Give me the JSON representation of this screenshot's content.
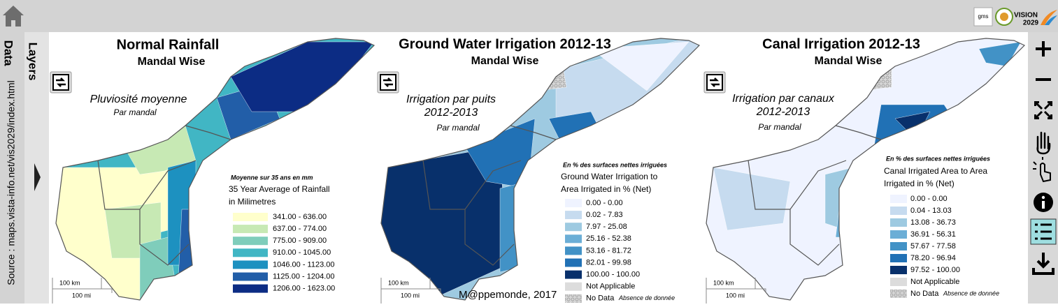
{
  "top_bar": {
    "logo_gms": "gms",
    "logo_vision": [
      "VISION",
      "2029"
    ]
  },
  "sidebar": {
    "data_tab": "Data",
    "source": "Source : maps.vista-info.net/vis2029/index.html",
    "layers_tab": "Layers"
  },
  "panels": [
    {
      "title": "Normal Rainfall",
      "subtitle": "Mandal Wise",
      "title_fr": [
        "Pluviosité moyenne"
      ],
      "subtitle_fr": "Par mandal",
      "legend": {
        "note": "Moyenne sur 35 ans en mm",
        "title": [
          "35 Year Average of Rainfall",
          "in Milimetres"
        ],
        "items": [
          {
            "label": "341.00 - 636.00",
            "color": "#ffffcc"
          },
          {
            "label": "637.00 - 774.00",
            "color": "#c7e9b4"
          },
          {
            "label": "775.00 - 909.00",
            "color": "#7fcdbb"
          },
          {
            "label": "910.00 - 1045.00",
            "color": "#41b6c4"
          },
          {
            "label": "1046.00 - 1123.00",
            "color": "#1d91c0"
          },
          {
            "label": "1125.00 - 1204.00",
            "color": "#225ea8"
          },
          {
            "label": "1206.00 - 1623.00",
            "color": "#0c2c84"
          }
        ]
      },
      "scale": [
        "100 km",
        "100 mi"
      ]
    },
    {
      "title": "Ground Water Irrigation 2012-13",
      "subtitle": "Mandal Wise",
      "title_fr": [
        "Irrigation par puits",
        "2012-2013"
      ],
      "subtitle_fr": "Par mandal",
      "legend": {
        "note": "En % des surfaces nettes irriguées",
        "title": [
          "Ground Water Irrigation to",
          "Area Irrigated in % (Net)"
        ],
        "items": [
          {
            "label": "0.00 - 0.00",
            "color": "#eff3ff"
          },
          {
            "label": "0.02 - 7.83",
            "color": "#c6dbef"
          },
          {
            "label": "7.97 - 25.08",
            "color": "#9ecae1"
          },
          {
            "label": "25.16 - 52.38",
            "color": "#6baed6"
          },
          {
            "label": "53.16 - 81.72",
            "color": "#4292c6"
          },
          {
            "label": "82.01 - 99.98",
            "color": "#2171b5"
          },
          {
            "label": "100.00 - 100.00",
            "color": "#08306b"
          }
        ],
        "not_applicable": {
          "label": "Not Applicable",
          "color": "#dcdcdc"
        },
        "no_data": {
          "label": "No Data",
          "note": "Absence de donnée",
          "color": "#cfcfcf"
        }
      },
      "scale": [
        "100 km",
        "100 mi"
      ]
    },
    {
      "title": "Canal Irrigation 2012-13",
      "subtitle": "Mandal Wise",
      "title_fr": [
        "Irrigation par canaux",
        "2012-2013"
      ],
      "subtitle_fr": "Par mandal",
      "legend": {
        "note": "En % des surfaces nettes irriguées",
        "title": [
          "Canal Irrigated Area to Area",
          "Irrigated in % (Net)"
        ],
        "items": [
          {
            "label": "0.00 - 0.00",
            "color": "#eff3ff"
          },
          {
            "label": "0.04 - 13.03",
            "color": "#c6dbef"
          },
          {
            "label": "13.08 - 36.73",
            "color": "#9ecae1"
          },
          {
            "label": "36.91 - 56.31",
            "color": "#6baed6"
          },
          {
            "label": "57.67 - 77.58",
            "color": "#4292c6"
          },
          {
            "label": "78.20 - 96.94",
            "color": "#2171b5"
          },
          {
            "label": "97.52 - 100.00",
            "color": "#08306b"
          }
        ],
        "not_applicable": {
          "label": "Not Applicable",
          "color": "#dcdcdc"
        },
        "no_data": {
          "label": "No Data",
          "note": "Absence de donnée",
          "color": "#cfcfcf"
        }
      },
      "scale": [
        "100 km",
        "100 mi"
      ]
    }
  ],
  "credit": "M@ppemonde, 2017"
}
